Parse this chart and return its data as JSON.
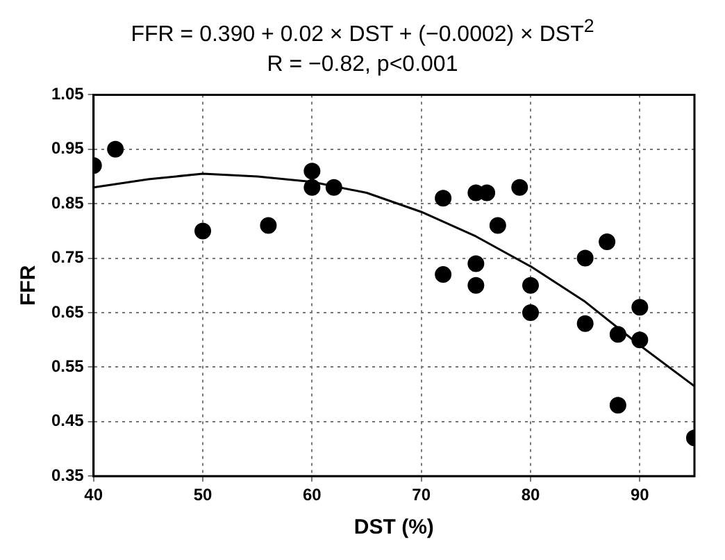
{
  "chart_data": {
    "type": "scatter",
    "title": "FFR = 0.390 + 0.02 × DST + (−0.0002) × DST$^{2}$",
    "subtitle": "R = −0.82, p<0.001",
    "xlabel": "DST (%)",
    "ylabel": "FFR",
    "xlim": [
      40,
      95
    ],
    "xticks": [
      40,
      50,
      60,
      70,
      80,
      90
    ],
    "ylim": [
      0.35,
      1.05
    ],
    "yticks": [
      0.35,
      0.45,
      0.55,
      0.65,
      0.75,
      0.85,
      0.95,
      1.05
    ],
    "grid": true,
    "legend": false,
    "series": [
      {
        "color": "#000000",
        "marker": "circle",
        "x": [
          40,
          42,
          50,
          56,
          60,
          60,
          62,
          72,
          72,
          75,
          76,
          79,
          77,
          75,
          75,
          80,
          80,
          85,
          87,
          85,
          88,
          88,
          90,
          90,
          95
        ],
        "values": [
          0.92,
          0.95,
          0.8,
          0.81,
          0.91,
          0.88,
          0.88,
          0.86,
          0.72,
          0.87,
          0.87,
          0.88,
          0.81,
          0.74,
          0.7,
          0.7,
          0.65,
          0.75,
          0.78,
          0.63,
          0.61,
          0.48,
          0.66,
          0.6,
          0.42
        ]
      },
      {
        "type": "line",
        "color": "#000000",
        "line_style": "solid",
        "marker": "none",
        "x": [
          40,
          45,
          50,
          55,
          60,
          65,
          70,
          75,
          80,
          85,
          90,
          95
        ],
        "values": [
          0.88,
          0.895,
          0.905,
          0.9,
          0.89,
          0.87,
          0.835,
          0.79,
          0.735,
          0.67,
          0.59,
          0.515
        ]
      }
    ]
  }
}
